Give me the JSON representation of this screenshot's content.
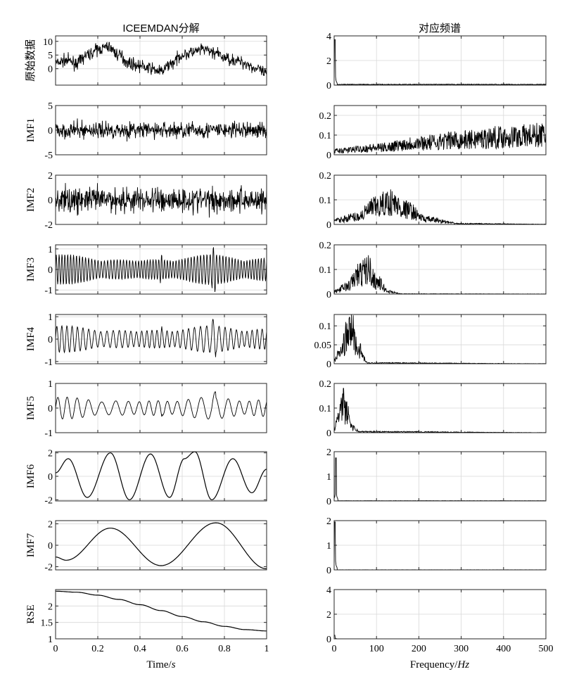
{
  "titles": {
    "left": "ICEEMDAN分解",
    "right": "对应频谱"
  },
  "xlabels": {
    "left": "Time/",
    "left_italic": "s",
    "right": "Frequency/",
    "right_italic": "Hz"
  },
  "colors": {
    "line": "#000000",
    "grid": "#d9d9d9",
    "axes": "#262626"
  },
  "chart_data": [
    {
      "id": "orig-time",
      "type": "line",
      "ylabel": "原始数据",
      "xlim": [
        0,
        1
      ],
      "ylim": [
        -6,
        12
      ],
      "yticks": [
        0,
        5,
        10
      ],
      "ytick_labels": [
        "0",
        "5",
        "10"
      ],
      "grid": true,
      "signal": "noisy",
      "x": [
        0,
        0.05,
        0.1,
        0.15,
        0.2,
        0.25,
        0.3,
        0.35,
        0.4,
        0.45,
        0.5,
        0.55,
        0.6,
        0.65,
        0.7,
        0.75,
        0.8,
        0.85,
        0.9,
        0.95,
        1.0
      ],
      "y": [
        2,
        3,
        2,
        5,
        7,
        8,
        5,
        2,
        1,
        0,
        -1,
        2,
        5,
        6,
        7,
        6,
        4,
        3,
        2,
        0,
        -2
      ],
      "noise": 2.2
    },
    {
      "id": "imf1-time",
      "type": "line",
      "ylabel": "IMF1",
      "xlim": [
        0,
        1
      ],
      "ylim": [
        -5,
        5
      ],
      "yticks": [
        -5,
        0,
        5
      ],
      "ytick_labels": [
        "-5",
        "0",
        "5"
      ],
      "grid": true,
      "signal": "noise",
      "noise": 1.6
    },
    {
      "id": "imf2-time",
      "type": "line",
      "ylabel": "IMF2",
      "xlim": [
        0,
        1
      ],
      "ylim": [
        -2,
        2
      ],
      "yticks": [
        -2,
        0,
        2
      ],
      "ytick_labels": [
        "-2",
        "0",
        "2"
      ],
      "grid": true,
      "signal": "noise",
      "noise": 1.0,
      "freq": 140
    },
    {
      "id": "imf3-time",
      "type": "line",
      "ylabel": "IMF3",
      "xlim": [
        0,
        1
      ],
      "ylim": [
        -1.2,
        1.2
      ],
      "yticks": [
        -1,
        0,
        1
      ],
      "ytick_labels": [
        "-1",
        "0",
        "1"
      ],
      "grid": true,
      "signal": "am",
      "freq": 70,
      "amp": 0.75
    },
    {
      "id": "imf4-time",
      "type": "line",
      "ylabel": "IMF4",
      "xlim": [
        0,
        1
      ],
      "ylim": [
        -1.1,
        1.1
      ],
      "yticks": [
        -1,
        0,
        1
      ],
      "ytick_labels": [
        "-1",
        "0",
        "1"
      ],
      "grid": true,
      "signal": "am",
      "freq": 38,
      "amp": 0.6
    },
    {
      "id": "imf5-time",
      "type": "line",
      "ylabel": "IMF5",
      "xlim": [
        0,
        1
      ],
      "ylim": [
        -1,
        1
      ],
      "yticks": [
        -1,
        0,
        1
      ],
      "ytick_labels": [
        "-1",
        "0",
        "1"
      ],
      "grid": true,
      "signal": "am",
      "freq": 19,
      "amp": 0.45
    },
    {
      "id": "imf6-time",
      "type": "line",
      "ylabel": "IMF6",
      "xlim": [
        0,
        1
      ],
      "ylim": [
        -2.1,
        2.1
      ],
      "yticks": [
        -2,
        0,
        2
      ],
      "ytick_labels": [
        "-2",
        "0",
        "2"
      ],
      "grid": true,
      "signal": "smooth",
      "x": [
        0,
        0.06,
        0.15,
        0.26,
        0.35,
        0.45,
        0.54,
        0.61,
        0.66,
        0.74,
        0.84,
        0.93,
        1.0
      ],
      "y": [
        0.3,
        1.5,
        -1.8,
        2.0,
        -2.0,
        1.9,
        -1.8,
        1.5,
        2.1,
        -2.0,
        1.5,
        -1.4,
        0.6
      ]
    },
    {
      "id": "imf7-time",
      "type": "line",
      "ylabel": "IMF7",
      "xlim": [
        0,
        1
      ],
      "ylim": [
        -2.3,
        2.3
      ],
      "yticks": [
        -2,
        0,
        2
      ],
      "ytick_labels": [
        "-2",
        "0",
        "2"
      ],
      "grid": true,
      "signal": "smooth",
      "x": [
        0,
        0.05,
        0.26,
        0.5,
        0.76,
        1.0
      ],
      "y": [
        -1.1,
        -1.4,
        1.6,
        -1.9,
        2.1,
        -2.2
      ]
    },
    {
      "id": "rse-time",
      "type": "line",
      "ylabel": "RSE",
      "xlim": [
        0,
        1
      ],
      "ylim": [
        1,
        2.5
      ],
      "yticks": [
        1,
        1.5,
        2
      ],
      "ytick_labels": [
        "1",
        "1.5",
        "2"
      ],
      "grid": true,
      "signal": "smooth",
      "x": [
        0,
        0.1,
        0.2,
        0.3,
        0.4,
        0.5,
        0.6,
        0.7,
        0.8,
        0.9,
        1.0
      ],
      "y": [
        2.45,
        2.42,
        2.33,
        2.2,
        2.04,
        1.86,
        1.68,
        1.52,
        1.38,
        1.28,
        1.24
      ],
      "xticks": [
        0,
        0.2,
        0.4,
        0.6,
        0.8,
        1
      ],
      "xtick_labels": [
        "0",
        "0.2",
        "0.4",
        "0.6",
        "0.8",
        "1"
      ]
    },
    {
      "id": "orig-freq",
      "type": "line",
      "xlim": [
        0,
        500
      ],
      "ylim": [
        0,
        4
      ],
      "yticks": [
        0,
        2,
        4
      ],
      "ytick_labels": [
        "0",
        "2",
        "4"
      ],
      "grid": true,
      "signal": "spike",
      "spike": {
        "x": 2,
        "y": 3.7
      },
      "floor": 0.07
    },
    {
      "id": "imf1-freq",
      "type": "line",
      "xlim": [
        0,
        500
      ],
      "ylim": [
        0,
        0.25
      ],
      "yticks": [
        0,
        0.1,
        0.2
      ],
      "ytick_labels": [
        "0",
        "0.1",
        "0.2"
      ],
      "grid": true,
      "signal": "ramp",
      "envelope": {
        "x": [
          0,
          100,
          200,
          300,
          400,
          500
        ],
        "y": [
          0.02,
          0.035,
          0.06,
          0.075,
          0.09,
          0.1
        ]
      }
    },
    {
      "id": "imf2-freq",
      "type": "line",
      "xlim": [
        0,
        500
      ],
      "ylim": [
        0,
        0.2
      ],
      "yticks": [
        0,
        0.1,
        0.2
      ],
      "ytick_labels": [
        "0",
        "0.1",
        "0.2"
      ],
      "grid": true,
      "signal": "band",
      "envelope": {
        "x": [
          0,
          50,
          100,
          130,
          170,
          220,
          300,
          500
        ],
        "y": [
          0.015,
          0.03,
          0.07,
          0.09,
          0.06,
          0.02,
          0.003,
          0.001
        ]
      }
    },
    {
      "id": "imf3-freq",
      "type": "line",
      "xlim": [
        0,
        500
      ],
      "ylim": [
        0,
        0.2
      ],
      "yticks": [
        0,
        0.1,
        0.2
      ],
      "ytick_labels": [
        "0",
        "0.1",
        "0.2"
      ],
      "grid": true,
      "signal": "band",
      "envelope": {
        "x": [
          0,
          30,
          60,
          80,
          100,
          130,
          160,
          500
        ],
        "y": [
          0.01,
          0.03,
          0.08,
          0.1,
          0.05,
          0.01,
          0.001,
          0.0005
        ]
      }
    },
    {
      "id": "imf4-freq",
      "type": "line",
      "xlim": [
        0,
        500
      ],
      "ylim": [
        0,
        0.13
      ],
      "yticks": [
        0,
        0.05,
        0.1
      ],
      "ytick_labels": [
        "0",
        "0.05",
        "0.1"
      ],
      "grid": true,
      "signal": "band",
      "envelope": {
        "x": [
          0,
          15,
          30,
          42,
          55,
          80,
          500
        ],
        "y": [
          0.01,
          0.03,
          0.07,
          0.09,
          0.04,
          0.002,
          0.0003
        ]
      }
    },
    {
      "id": "imf5-freq",
      "type": "line",
      "xlim": [
        0,
        500
      ],
      "ylim": [
        0,
        0.2
      ],
      "yticks": [
        0,
        0.1,
        0.2
      ],
      "ytick_labels": [
        "0",
        "0.1",
        "0.2"
      ],
      "grid": true,
      "signal": "band",
      "envelope": {
        "x": [
          0,
          10,
          20,
          30,
          45,
          60,
          500
        ],
        "y": [
          0.02,
          0.06,
          0.1,
          0.08,
          0.02,
          0.004,
          0.0005
        ]
      },
      "peak": {
        "x": 22,
        "y": 0.18
      }
    },
    {
      "id": "imf6-freq",
      "type": "line",
      "xlim": [
        0,
        500
      ],
      "ylim": [
        0,
        2
      ],
      "yticks": [
        0,
        1,
        2
      ],
      "ytick_labels": [
        "0",
        "1",
        "2"
      ],
      "grid": true,
      "signal": "spike",
      "spike": {
        "x": 4,
        "y": 1.75
      },
      "floor": 0.01
    },
    {
      "id": "imf7-freq",
      "type": "line",
      "xlim": [
        0,
        500
      ],
      "ylim": [
        0,
        2
      ],
      "yticks": [
        0,
        1,
        2
      ],
      "ytick_labels": [
        "0",
        "1",
        "2"
      ],
      "grid": true,
      "signal": "spike",
      "spike": {
        "x": 2,
        "y": 1.95
      },
      "floor": 0.005
    },
    {
      "id": "rse-freq",
      "type": "line",
      "xlim": [
        0,
        500
      ],
      "ylim": [
        0,
        4
      ],
      "yticks": [
        0,
        2,
        4
      ],
      "ytick_labels": [
        "0",
        "2",
        "4"
      ],
      "grid": true,
      "signal": "spike",
      "spike": {
        "x": 1,
        "y": 0.3
      },
      "floor": 0.002,
      "xticks": [
        0,
        100,
        200,
        300,
        400,
        500
      ],
      "xtick_labels": [
        "0",
        "100",
        "200",
        "300",
        "400",
        "500"
      ]
    }
  ]
}
